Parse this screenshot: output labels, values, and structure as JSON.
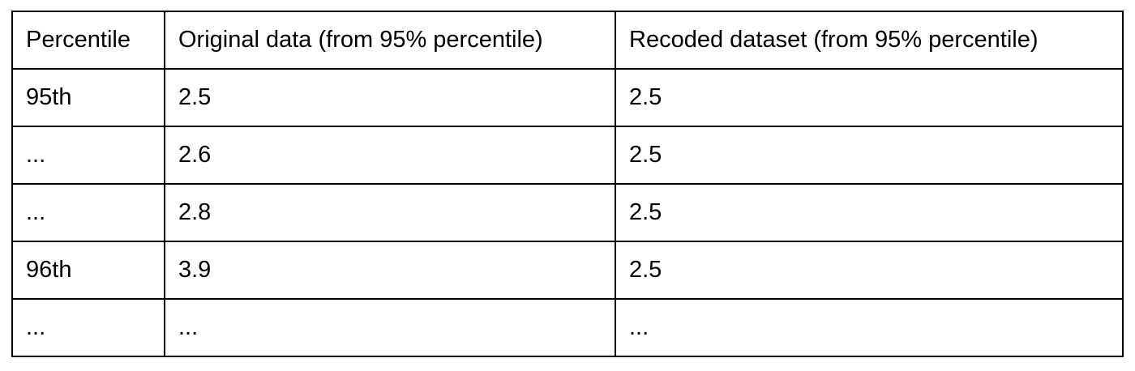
{
  "table": {
    "headers": [
      "Percentile",
      "Original data (from 95% percentile)",
      "Recoded dataset (from 95% percentile)"
    ],
    "rows": [
      [
        "95th",
        "2.5",
        "2.5"
      ],
      [
        "...",
        "2.6",
        "2.5"
      ],
      [
        "...",
        "2.8",
        "2.5"
      ],
      [
        "96th",
        "3.9",
        "2.5"
      ],
      [
        "...",
        "...",
        "..."
      ]
    ]
  }
}
